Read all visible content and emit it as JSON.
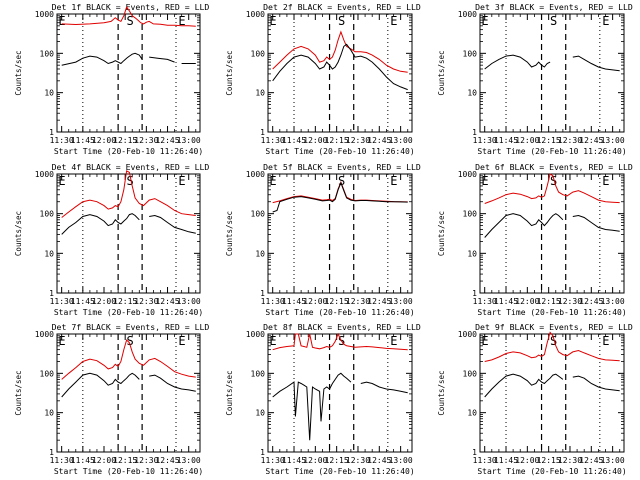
{
  "chart_data": {
    "type": "line",
    "ylabel": "Counts/sec",
    "xlabel": "Start Time (20-Feb-10 11:26:40)",
    "x_ticks": [
      "11:30",
      "11:45",
      "12:00",
      "12:15",
      "12:30",
      "12:45",
      "13:00"
    ],
    "x_tick_minutes": [
      0,
      15,
      30,
      45,
      60,
      75,
      90
    ],
    "xlim_minutes": [
      -3.3,
      98
    ],
    "y_scale": "log",
    "ylim": [
      1,
      1000
    ],
    "y_ticks": [
      "1",
      "10",
      "100",
      "1000"
    ],
    "y_tick_values": [
      1,
      10,
      100,
      1000
    ],
    "series_colors": {
      "events": "#000000",
      "lld": "#e00000"
    },
    "markers": {
      "E_label": "E",
      "S_label": "S",
      "E_dotted_minutes": [
        15,
        81
      ],
      "S_dashed_minutes": [
        40,
        57
      ],
      "S_label_minute": 48.5,
      "E_label_minutes": [
        -3,
        82
      ]
    },
    "panels": [
      {
        "title": "Det 1f BLACK = Events, RED = LLD",
        "events": {
          "x": [
            0,
            10,
            15,
            20,
            25,
            30,
            33,
            36,
            38,
            40,
            42,
            44,
            46,
            48,
            50,
            52,
            55,
            57,
            58,
            62,
            68,
            75,
            80,
            82,
            85,
            90,
            95
          ],
          "y": [
            50,
            60,
            75,
            85,
            80,
            65,
            55,
            60,
            65,
            60,
            55,
            65,
            75,
            85,
            95,
            100,
            90,
            70,
            null,
            80,
            75,
            70,
            60,
            null,
            55,
            55,
            55
          ]
        },
        "lld": {
          "x": [
            0,
            10,
            20,
            30,
            35,
            38,
            40,
            42,
            44,
            46,
            48,
            50,
            52,
            54,
            56,
            58,
            60,
            62,
            65,
            70,
            75,
            80,
            85,
            90,
            95
          ],
          "y": [
            560,
            540,
            560,
            600,
            650,
            800,
            700,
            650,
            900,
            1500,
            1200,
            900,
            800,
            700,
            600,
            560,
            620,
            650,
            560,
            550,
            520,
            520,
            500,
            500,
            490
          ]
        }
      },
      {
        "title": "Det 2f BLACK = Events, RED = LLD",
        "events": {
          "x": [
            0,
            5,
            10,
            15,
            20,
            25,
            30,
            33,
            36,
            38,
            40,
            42,
            44,
            46,
            48,
            50,
            52,
            55,
            58,
            62,
            66,
            70,
            75,
            80,
            85,
            90,
            95
          ],
          "y": [
            20,
            35,
            55,
            80,
            90,
            80,
            55,
            40,
            45,
            60,
            50,
            40,
            45,
            60,
            90,
            150,
            170,
            120,
            80,
            85,
            75,
            60,
            40,
            25,
            17,
            14,
            12
          ]
        },
        "lld": {
          "x": [
            0,
            5,
            10,
            15,
            20,
            25,
            30,
            33,
            36,
            38,
            40,
            42,
            44,
            46,
            48,
            50,
            52,
            55,
            58,
            62,
            66,
            70,
            75,
            80,
            85,
            90,
            95
          ],
          "y": [
            40,
            60,
            90,
            130,
            150,
            130,
            90,
            60,
            65,
            80,
            70,
            80,
            120,
            220,
            350,
            220,
            150,
            130,
            110,
            110,
            105,
            90,
            70,
            50,
            40,
            35,
            33
          ]
        }
      },
      {
        "title": "Det 3f BLACK = Events, RED = LLD",
        "events": {
          "x": [
            0,
            5,
            10,
            15,
            20,
            25,
            30,
            33,
            36,
            38,
            40,
            42,
            44,
            46,
            48,
            50,
            52,
            55,
            58,
            62,
            66,
            70,
            75,
            80,
            85,
            90,
            95
          ],
          "y": [
            40,
            55,
            70,
            85,
            90,
            80,
            60,
            45,
            50,
            60,
            50,
            45,
            55,
            60,
            null,
            null,
            null,
            null,
            null,
            80,
            85,
            70,
            55,
            45,
            40,
            38,
            36
          ]
        },
        "lld": {
          "x": [],
          "y": []
        }
      },
      {
        "title": "Det 4f BLACK = Events, RED = LLD",
        "events": {
          "x": [
            0,
            5,
            10,
            15,
            20,
            25,
            30,
            33,
            36,
            38,
            40,
            42,
            44,
            46,
            48,
            50,
            52,
            55,
            58,
            62,
            66,
            70,
            75,
            80,
            85,
            90,
            95
          ],
          "y": [
            30,
            45,
            60,
            85,
            95,
            85,
            65,
            50,
            55,
            70,
            60,
            55,
            65,
            75,
            95,
            100,
            90,
            70,
            null,
            85,
            90,
            80,
            60,
            45,
            40,
            35,
            32
          ]
        },
        "lld": {
          "x": [
            0,
            5,
            10,
            15,
            20,
            25,
            30,
            33,
            36,
            38,
            40,
            42,
            44,
            46,
            48,
            50,
            52,
            55,
            58,
            62,
            66,
            70,
            75,
            80,
            85,
            90,
            95
          ],
          "y": [
            80,
            110,
            150,
            200,
            220,
            200,
            160,
            130,
            140,
            160,
            150,
            200,
            400,
            1200,
            1100,
            500,
            250,
            180,
            160,
            220,
            240,
            200,
            160,
            120,
            100,
            95,
            90
          ]
        }
      },
      {
        "title": "Det 5f BLACK = Events, RED = LLD",
        "events": {
          "x": [
            0,
            3,
            5,
            10,
            15,
            20,
            25,
            30,
            35,
            38,
            40,
            42,
            44,
            46,
            48,
            50,
            52,
            55,
            58,
            62,
            66,
            70,
            75,
            80,
            85,
            90,
            95
          ],
          "y": [
            110,
            120,
            200,
            230,
            260,
            270,
            250,
            230,
            210,
            215,
            220,
            200,
            230,
            400,
            600,
            380,
            250,
            220,
            210,
            215,
            215,
            210,
            205,
            200,
            200,
            198,
            196
          ]
        },
        "lld": {
          "x": [
            0,
            5,
            10,
            15,
            20,
            25,
            30,
            35,
            38,
            40,
            42,
            44,
            46,
            48,
            50,
            52,
            55,
            58,
            62,
            66,
            70,
            75,
            80,
            85,
            90,
            95
          ],
          "y": [
            190,
            210,
            240,
            270,
            280,
            260,
            240,
            220,
            225,
            230,
            215,
            240,
            420,
            620,
            400,
            260,
            230,
            215,
            220,
            220,
            215,
            210,
            205,
            202,
            200,
            198
          ]
        }
      },
      {
        "title": "Det 6f BLACK = Events, RED = LLD",
        "events": {
          "x": [
            0,
            5,
            10,
            15,
            20,
            25,
            30,
            33,
            36,
            38,
            40,
            42,
            44,
            46,
            48,
            50,
            52,
            55,
            58,
            62,
            66,
            70,
            75,
            80,
            85,
            90,
            95
          ],
          "y": [
            25,
            40,
            60,
            90,
            100,
            90,
            65,
            50,
            55,
            70,
            60,
            50,
            60,
            75,
            90,
            100,
            90,
            70,
            null,
            85,
            90,
            80,
            60,
            45,
            40,
            38,
            36
          ]
        },
        "lld": {
          "x": [
            0,
            5,
            10,
            15,
            20,
            25,
            30,
            33,
            36,
            38,
            40,
            42,
            44,
            46,
            48,
            50,
            52,
            55,
            58,
            62,
            66,
            70,
            75,
            80,
            85,
            90,
            95
          ],
          "y": [
            180,
            210,
            250,
            300,
            330,
            310,
            270,
            240,
            250,
            280,
            260,
            280,
            500,
            1000,
            900,
            500,
            350,
            300,
            280,
            350,
            380,
            330,
            270,
            220,
            200,
            195,
            190
          ]
        }
      },
      {
        "title": "Det 7f BLACK = Events, RED = LLD",
        "events": {
          "x": [
            0,
            5,
            10,
            15,
            20,
            25,
            30,
            33,
            36,
            38,
            40,
            42,
            44,
            46,
            48,
            50,
            52,
            55,
            58,
            62,
            66,
            70,
            75,
            80,
            85,
            90,
            95
          ],
          "y": [
            25,
            40,
            60,
            90,
            100,
            90,
            65,
            50,
            55,
            70,
            60,
            55,
            65,
            75,
            90,
            100,
            90,
            70,
            null,
            85,
            90,
            75,
            55,
            45,
            40,
            38,
            35
          ]
        },
        "lld": {
          "x": [
            0,
            5,
            10,
            15,
            20,
            25,
            30,
            33,
            36,
            38,
            40,
            42,
            44,
            46,
            48,
            50,
            52,
            55,
            58,
            62,
            66,
            70,
            75,
            80,
            85,
            90,
            95
          ],
          "y": [
            70,
            100,
            140,
            200,
            230,
            210,
            160,
            130,
            140,
            170,
            150,
            200,
            400,
            700,
            600,
            350,
            230,
            180,
            160,
            220,
            240,
            200,
            150,
            110,
            95,
            85,
            80
          ]
        }
      },
      {
        "title": "Det 8f BLACK = Events, RED = LLD",
        "events": {
          "x": [
            0,
            5,
            10,
            15,
            16,
            18,
            20,
            22,
            24,
            26,
            28,
            30,
            33,
            34,
            36,
            38,
            40,
            42,
            44,
            46,
            48,
            50,
            52,
            55,
            58,
            62,
            66,
            70,
            75,
            80,
            85,
            90,
            95
          ],
          "y": [
            25,
            35,
            45,
            60,
            8,
            60,
            55,
            50,
            45,
            2,
            45,
            40,
            35,
            6,
            40,
            45,
            40,
            55,
            70,
            90,
            100,
            85,
            75,
            60,
            null,
            55,
            60,
            55,
            45,
            40,
            38,
            35,
            32
          ]
        },
        "lld": {
          "x": [
            0,
            5,
            10,
            15,
            16,
            18,
            20,
            22,
            24,
            26,
            28,
            30,
            33,
            36,
            38,
            40,
            42,
            44,
            46,
            48,
            50,
            52,
            55,
            58,
            62,
            66,
            70,
            75,
            80,
            85,
            90,
            95
          ],
          "y": [
            400,
            450,
            480,
            500,
            1000,
            1000,
            500,
            480,
            460,
            1000,
            460,
            440,
            420,
            450,
            480,
            460,
            500,
            650,
            1000,
            700,
            550,
            500,
            480,
            460,
            470,
            480,
            470,
            450,
            430,
            420,
            410,
            400
          ]
        }
      },
      {
        "title": "Det 9f BLACK = Events, RED = LLD",
        "events": {
          "x": [
            0,
            5,
            10,
            15,
            20,
            25,
            30,
            33,
            36,
            38,
            40,
            42,
            44,
            46,
            48,
            50,
            52,
            55,
            58,
            62,
            66,
            70,
            75,
            80,
            85,
            90,
            95
          ],
          "y": [
            25,
            40,
            60,
            85,
            95,
            85,
            65,
            50,
            55,
            70,
            60,
            55,
            65,
            75,
            90,
            95,
            85,
            70,
            null,
            80,
            85,
            75,
            55,
            45,
            40,
            38,
            36
          ]
        },
        "lld": {
          "x": [
            0,
            5,
            10,
            15,
            20,
            25,
            30,
            33,
            36,
            38,
            40,
            42,
            44,
            46,
            48,
            50,
            52,
            55,
            58,
            62,
            66,
            70,
            75,
            80,
            85,
            90,
            95
          ],
          "y": [
            200,
            220,
            260,
            320,
            350,
            330,
            280,
            250,
            260,
            290,
            270,
            300,
            600,
            1100,
            900,
            500,
            350,
            300,
            280,
            350,
            380,
            330,
            280,
            240,
            220,
            215,
            210
          ]
        }
      }
    ]
  }
}
